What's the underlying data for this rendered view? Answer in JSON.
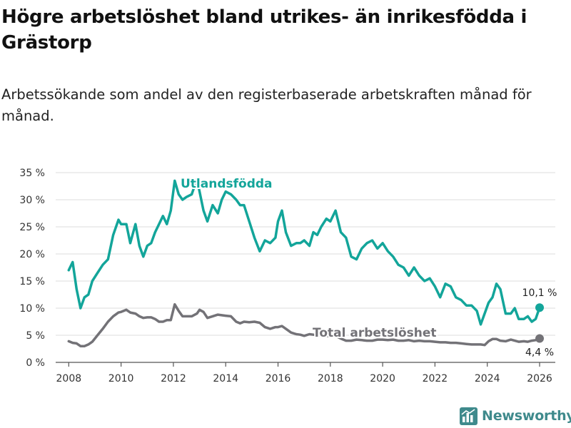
{
  "header": {
    "title": "Högre arbetslöshet bland utrikes- än inrikesfödda i Grästorp",
    "subtitle": "Arbetssökande som andel av den registerbaserade arbetskraften månad för månad."
  },
  "brand": {
    "name": "Newsworthy",
    "icon": "bar-chart-logo-icon",
    "color": "#3f8a8c"
  },
  "chart_data": {
    "type": "line",
    "title": "Högre arbetslöshet bland utrikes- än inrikesfödda i Grästorp",
    "subtitle": "Arbetssökande som andel av den registerbaserade arbetskraften månad för månad.",
    "xlabel": "",
    "ylabel": "",
    "xlim": [
      2007.5,
      2026.6
    ],
    "ylim": [
      0,
      35
    ],
    "grid": true,
    "x_ticks": [
      2008,
      2010,
      2012,
      2014,
      2016,
      2018,
      2020,
      2022,
      2024,
      2026
    ],
    "x_tick_labels": [
      "2008",
      "2010",
      "2012",
      "2014",
      "2016",
      "2018",
      "2020",
      "2022",
      "2024",
      "2026"
    ],
    "y_ticks": [
      0,
      5,
      10,
      15,
      20,
      25,
      30,
      35
    ],
    "y_tick_labels": [
      "0 %",
      "5 %",
      "10 %",
      "15 %",
      "20 %",
      "25 %",
      "30 %",
      "35 %"
    ],
    "series": [
      {
        "name": "Utlandsfödda",
        "color": "#13a59a",
        "end_label": "10,1 %",
        "x": [
          2008.0,
          2008.15,
          2008.3,
          2008.45,
          2008.6,
          2008.75,
          2008.9,
          2009.1,
          2009.3,
          2009.5,
          2009.7,
          2009.9,
          2010.0,
          2010.2,
          2010.35,
          2010.55,
          2010.7,
          2010.85,
          2011.0,
          2011.15,
          2011.3,
          2011.45,
          2011.6,
          2011.75,
          2011.9,
          2012.05,
          2012.2,
          2012.35,
          2012.5,
          2012.7,
          2012.9,
          2013.0,
          2013.15,
          2013.3,
          2013.5,
          2013.7,
          2013.85,
          2014.0,
          2014.2,
          2014.4,
          2014.55,
          2014.7,
          2014.9,
          2015.1,
          2015.3,
          2015.5,
          2015.7,
          2015.9,
          2016.0,
          2016.15,
          2016.3,
          2016.5,
          2016.7,
          2016.85,
          2017.0,
          2017.2,
          2017.35,
          2017.5,
          2017.65,
          2017.85,
          2018.0,
          2018.2,
          2018.4,
          2018.6,
          2018.8,
          2019.0,
          2019.2,
          2019.4,
          2019.6,
          2019.8,
          2020.0,
          2020.2,
          2020.4,
          2020.6,
          2020.8,
          2021.0,
          2021.2,
          2021.4,
          2021.6,
          2021.8,
          2022.0,
          2022.2,
          2022.4,
          2022.6,
          2022.8,
          2023.0,
          2023.2,
          2023.4,
          2023.6,
          2023.75,
          2023.9,
          2024.05,
          2024.2,
          2024.35,
          2024.5,
          2024.7,
          2024.9,
          2025.05,
          2025.2,
          2025.4,
          2025.55,
          2025.7,
          2025.85,
          2026.0
        ],
        "y": [
          17.0,
          18.5,
          13.5,
          10.0,
          12.0,
          12.5,
          15.0,
          16.5,
          18.0,
          19.0,
          23.5,
          26.3,
          25.5,
          25.5,
          22.0,
          25.5,
          21.5,
          19.5,
          21.5,
          22.0,
          24.0,
          25.5,
          27.0,
          25.5,
          28.0,
          33.5,
          31.0,
          30.0,
          30.5,
          31.0,
          33.8,
          31.5,
          28.0,
          26.0,
          29.0,
          27.5,
          30.0,
          31.5,
          31.0,
          30.0,
          29.0,
          29.0,
          26.0,
          23.0,
          20.5,
          22.5,
          22.0,
          23.0,
          26.0,
          28.0,
          24.0,
          21.5,
          22.0,
          22.0,
          22.5,
          21.5,
          24.0,
          23.5,
          25.0,
          26.5,
          26.0,
          28.0,
          24.0,
          23.0,
          19.5,
          19.0,
          21.0,
          22.0,
          22.5,
          21.0,
          22.0,
          20.5,
          19.5,
          18.0,
          17.5,
          16.0,
          17.5,
          16.0,
          15.0,
          15.5,
          14.0,
          12.0,
          14.5,
          14.0,
          12.0,
          11.5,
          10.5,
          10.5,
          9.5,
          7.0,
          9.0,
          11.0,
          12.0,
          14.5,
          13.5,
          9.0,
          9.0,
          10.0,
          8.0,
          8.0,
          8.5,
          7.5,
          8.0,
          10.1
        ]
      },
      {
        "name": "Total arbetslöshet",
        "color": "#737277",
        "end_label": "4,4 %",
        "x": [
          2008.0,
          2008.15,
          2008.3,
          2008.45,
          2008.6,
          2008.75,
          2008.9,
          2009.1,
          2009.3,
          2009.5,
          2009.7,
          2009.9,
          2010.0,
          2010.2,
          2010.35,
          2010.55,
          2010.7,
          2010.85,
          2011.0,
          2011.15,
          2011.3,
          2011.45,
          2011.6,
          2011.75,
          2011.9,
          2012.05,
          2012.2,
          2012.35,
          2012.5,
          2012.7,
          2012.9,
          2013.0,
          2013.15,
          2013.3,
          2013.5,
          2013.7,
          2013.85,
          2014.0,
          2014.2,
          2014.4,
          2014.55,
          2014.7,
          2014.9,
          2015.1,
          2015.3,
          2015.5,
          2015.7,
          2015.9,
          2016.0,
          2016.15,
          2016.3,
          2016.5,
          2016.7,
          2016.85,
          2017.0,
          2017.2,
          2017.35,
          2017.5,
          2017.65,
          2017.85,
          2018.0,
          2018.2,
          2018.4,
          2018.6,
          2018.8,
          2019.0,
          2019.2,
          2019.4,
          2019.6,
          2019.8,
          2020.0,
          2020.2,
          2020.4,
          2020.6,
          2020.8,
          2021.0,
          2021.2,
          2021.4,
          2021.6,
          2021.8,
          2022.0,
          2022.2,
          2022.4,
          2022.6,
          2022.8,
          2023.0,
          2023.2,
          2023.4,
          2023.6,
          2023.75,
          2023.9,
          2024.05,
          2024.2,
          2024.35,
          2024.5,
          2024.7,
          2024.9,
          2025.05,
          2025.2,
          2025.4,
          2025.55,
          2025.7,
          2025.85,
          2026.0
        ],
        "y": [
          3.9,
          3.6,
          3.5,
          3.0,
          3.0,
          3.3,
          3.8,
          5.0,
          6.2,
          7.5,
          8.5,
          9.2,
          9.3,
          9.7,
          9.2,
          9.0,
          8.5,
          8.2,
          8.3,
          8.3,
          8.0,
          7.5,
          7.5,
          7.8,
          7.8,
          10.7,
          9.5,
          8.5,
          8.5,
          8.5,
          9.0,
          9.7,
          9.3,
          8.2,
          8.5,
          8.8,
          8.7,
          8.6,
          8.5,
          7.5,
          7.2,
          7.5,
          7.4,
          7.5,
          7.3,
          6.5,
          6.2,
          6.5,
          6.5,
          6.7,
          6.2,
          5.5,
          5.2,
          5.1,
          4.9,
          5.2,
          5.1,
          5.0,
          5.0,
          4.9,
          4.8,
          4.9,
          4.4,
          4.0,
          4.0,
          4.2,
          4.1,
          4.0,
          4.0,
          4.2,
          4.2,
          4.1,
          4.2,
          4.0,
          4.0,
          4.1,
          3.9,
          4.0,
          3.9,
          3.9,
          3.8,
          3.7,
          3.7,
          3.6,
          3.6,
          3.5,
          3.4,
          3.3,
          3.3,
          3.3,
          3.2,
          3.9,
          4.3,
          4.3,
          4.0,
          3.9,
          4.2,
          4.0,
          3.8,
          3.9,
          3.8,
          4.0,
          4.1,
          4.4
        ]
      }
    ]
  }
}
